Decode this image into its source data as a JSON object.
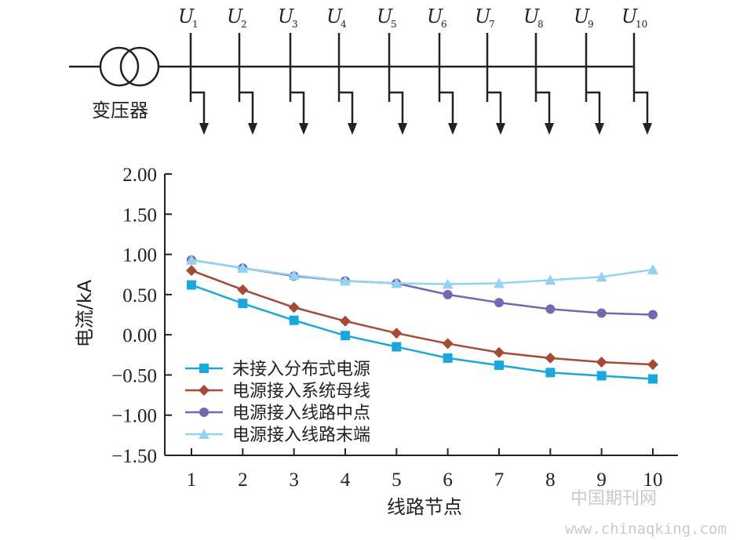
{
  "diagram": {
    "transformer_label": "变压器",
    "nodes": [
      {
        "label": "U",
        "sub": "1"
      },
      {
        "label": "U",
        "sub": "2"
      },
      {
        "label": "U",
        "sub": "3"
      },
      {
        "label": "U",
        "sub": "4"
      },
      {
        "label": "U",
        "sub": "5"
      },
      {
        "label": "U",
        "sub": "6"
      },
      {
        "label": "U",
        "sub": "7"
      },
      {
        "label": "U",
        "sub": "8"
      },
      {
        "label": "U",
        "sub": "9"
      },
      {
        "label": "U",
        "sub": "10"
      }
    ]
  },
  "chart_data": {
    "type": "line",
    "xlabel": "线路节点",
    "ylabel": "电流/kA",
    "categories": [
      "1",
      "2",
      "3",
      "4",
      "5",
      "6",
      "7",
      "8",
      "9",
      "10"
    ],
    "y_ticks": [
      "2.00",
      "1.50",
      "1.00",
      "0.50",
      "0.00",
      "−0.50",
      "−1.00",
      "−1.50"
    ],
    "ylim": [
      -1.5,
      2.0
    ],
    "grid": false,
    "legend_position": "bottom-left",
    "series": [
      {
        "name": "未接入分布式电源",
        "color": "#1aa7dc",
        "marker": "square",
        "values": [
          0.62,
          0.39,
          0.18,
          -0.01,
          -0.15,
          -0.29,
          -0.38,
          -0.47,
          -0.51,
          -0.55
        ]
      },
      {
        "name": "电源接入系统母线",
        "color": "#a54a35",
        "marker": "diamond",
        "values": [
          0.8,
          0.56,
          0.34,
          0.17,
          0.02,
          -0.11,
          -0.22,
          -0.29,
          -0.34,
          -0.37
        ]
      },
      {
        "name": "电源接入线路中点",
        "color": "#7668b0",
        "marker": "circle",
        "values": [
          0.93,
          0.83,
          0.73,
          0.67,
          0.64,
          0.5,
          0.4,
          0.32,
          0.27,
          0.25
        ]
      },
      {
        "name": "电源接入线路末端",
        "color": "#93d2f0",
        "marker": "triangle",
        "values": [
          0.93,
          0.83,
          0.74,
          0.67,
          0.64,
          0.63,
          0.64,
          0.68,
          0.72,
          0.81
        ]
      }
    ]
  },
  "watermark": {
    "site_name": "中国期刊网",
    "url": "www.chinaqking.com"
  }
}
